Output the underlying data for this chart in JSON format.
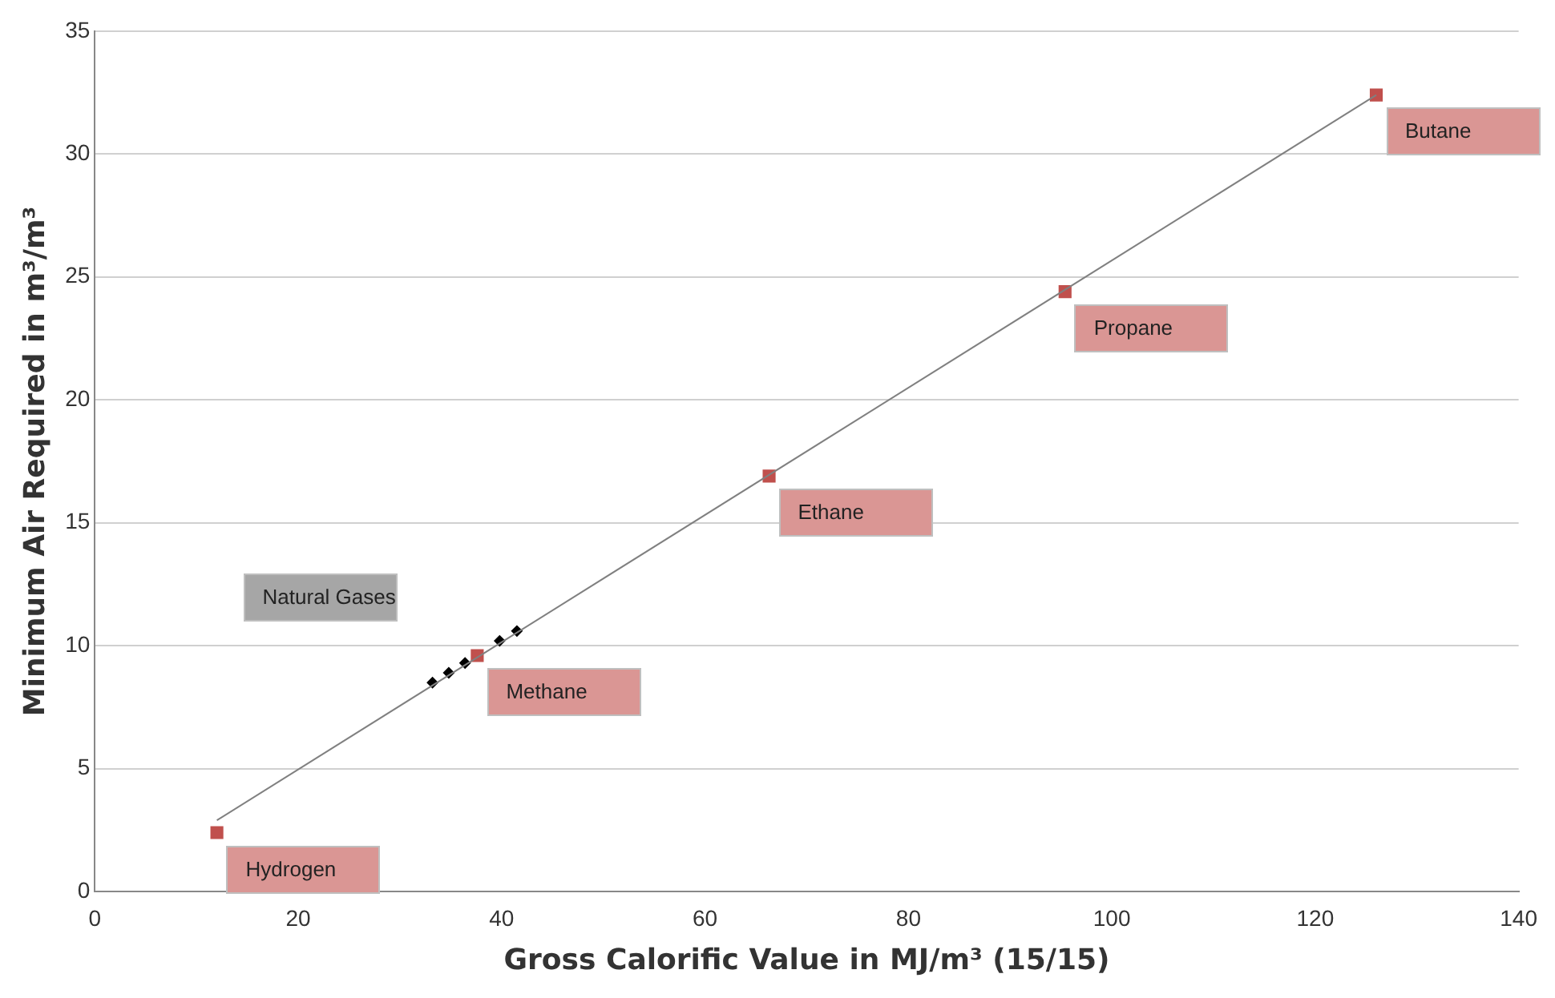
{
  "chart_data": {
    "type": "scatter",
    "xlabel": "Gross Calorific Value in MJ/m³ (15/15)",
    "ylabel": "Minimum Air Required in m³/m³",
    "xlim": [
      0,
      140
    ],
    "xticks": [
      0,
      20,
      40,
      60,
      80,
      100,
      120,
      140
    ],
    "ylim": [
      0,
      35
    ],
    "yticks": [
      0,
      5,
      10,
      15,
      20,
      25,
      30,
      35
    ],
    "grid": "y",
    "legend": false,
    "series": [
      {
        "type": "line",
        "color": "#808080",
        "marker": "none",
        "x": [
          12,
          126
        ],
        "values": [
          2.9,
          32.4
        ]
      },
      {
        "type": "scatter",
        "color": "#c0504d",
        "marker": "square",
        "x": [
          12,
          37.6,
          66.3,
          95.4,
          126
        ],
        "values": [
          2.4,
          9.6,
          16.9,
          24.4,
          32.4
        ]
      },
      {
        "type": "scatter",
        "color": "#000000",
        "marker": "diamond",
        "x": [
          33.2,
          34.8,
          36.4,
          38,
          39.8,
          41.5
        ],
        "values": [
          8.5,
          8.9,
          9.3,
          null,
          10.2,
          10.6
        ]
      }
    ],
    "annotations": [
      {
        "text": "Hydrogen",
        "x": 12,
        "y": 2.4
      },
      {
        "text": "Methane",
        "x": 37.6,
        "y": 9.6
      },
      {
        "text": "Ethane",
        "x": 66.3,
        "y": 16.9
      },
      {
        "text": "Propane",
        "x": 95.4,
        "y": 24.4
      },
      {
        "text": "Butane",
        "x": 126,
        "y": 32.4
      },
      "Natural Gases"
    ]
  }
}
